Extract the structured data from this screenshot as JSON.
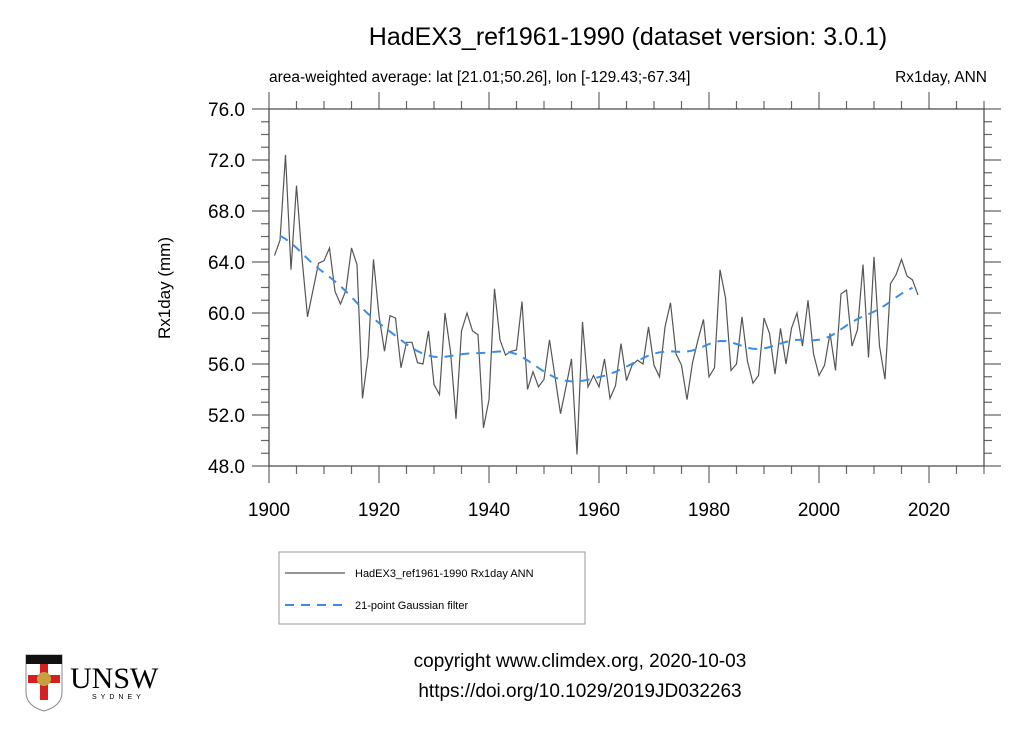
{
  "chart_data": {
    "type": "line",
    "title": "HadEX3_ref1961-1990 (dataset version: 3.0.1)",
    "subtitle_left": "area-weighted average: lat [21.01;50.26], lon [-129.43;-67.34]",
    "subtitle_right": "Rx1day, ANN",
    "xlabel": "",
    "ylabel": "Rx1day (mm)",
    "xlim": [
      1900,
      2030
    ],
    "ylim": [
      48,
      76
    ],
    "xticks": [
      1900,
      1920,
      1940,
      1960,
      1980,
      2000,
      2020
    ],
    "yticks": [
      48,
      52,
      56,
      60,
      64,
      68,
      72,
      76
    ],
    "ytick_labels": [
      "48.0",
      "52.0",
      "56.0",
      "60.0",
      "64.0",
      "68.0",
      "72.0",
      "76.0"
    ],
    "grid": false,
    "legend_placement": "below",
    "series": [
      {
        "name": "HadEX3_ref1961-1990 Rx1day ANN",
        "color": "#555555",
        "style": "solid",
        "x_start": 1901,
        "values": [
          64.5,
          65.7,
          72.4,
          63.4,
          70.0,
          64.3,
          59.7,
          61.8,
          63.9,
          64.1,
          65.1,
          61.7,
          60.7,
          61.8,
          65.1,
          63.8,
          53.3,
          56.6,
          64.2,
          59.8,
          57.0,
          59.8,
          59.6,
          55.7,
          57.7,
          57.7,
          56.1,
          56.0,
          58.6,
          54.4,
          53.6,
          60.0,
          57.0,
          51.7,
          58.6,
          60.0,
          58.6,
          58.3,
          51.0,
          53.2,
          61.9,
          57.9,
          56.7,
          57.0,
          57.1,
          60.9,
          54.0,
          55.4,
          54.2,
          54.8,
          57.9,
          55.0,
          52.1,
          54.2,
          56.4,
          48.9,
          59.3,
          54.2,
          55.1,
          54.2,
          56.4,
          53.3,
          54.3,
          57.6,
          54.7,
          55.9,
          56.3,
          56.0,
          58.9,
          55.9,
          55.0,
          58.9,
          60.8,
          56.8,
          55.9,
          53.2,
          56.1,
          57.9,
          59.5,
          55.0,
          55.7,
          63.4,
          61.2,
          55.5,
          56.0,
          59.7,
          56.2,
          54.5,
          55.1,
          59.6,
          58.4,
          55.2,
          58.8,
          56.0,
          58.8,
          60.0,
          57.4,
          61.0,
          56.8,
          55.1,
          55.9,
          58.4,
          55.5,
          61.5,
          61.8,
          57.4,
          58.7,
          63.8,
          56.5,
          64.4,
          57.4,
          54.8,
          62.3,
          63.0,
          64.2,
          62.9,
          62.6,
          61.4
        ]
      },
      {
        "name": "21-point Gaussian filter",
        "color": "#3a8ee6",
        "style": "dashed",
        "filter_points": 21
      }
    ]
  },
  "footer": {
    "copyright": "copyright www.climdex.org, 2020-10-03",
    "doi": "https://doi.org/10.1029/2019JD032263"
  },
  "logo": {
    "name": "UNSW",
    "sub": "SYDNEY"
  }
}
